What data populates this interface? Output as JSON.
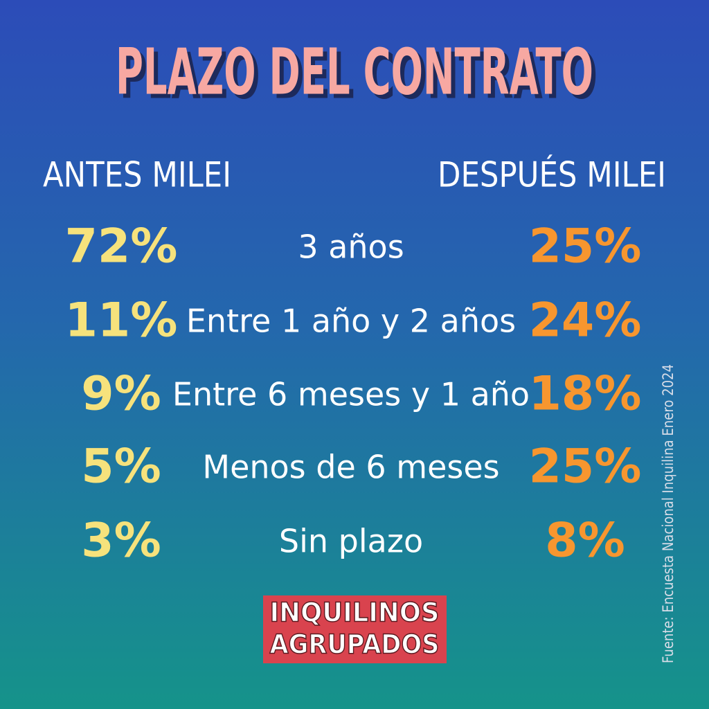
{
  "title": "PLAZO DEL CONTRATO",
  "columns": {
    "before": "ANTES MILEI",
    "after": "DESPUÉS MILEI"
  },
  "rows": [
    {
      "before": "72%",
      "label": "3 años",
      "after": "25%"
    },
    {
      "before": "11%",
      "label": "Entre 1 año y 2 años",
      "after": "24%"
    },
    {
      "before": "9%",
      "label": "Entre 6 meses y 1 año",
      "after": "18%"
    },
    {
      "before": "5%",
      "label": "Menos de 6 meses",
      "after": "25%"
    },
    {
      "before": "3%",
      "label": "Sin plazo",
      "after": "8%"
    }
  ],
  "logo": [
    "INQUILINOS",
    "AGRUPADOS"
  ],
  "source": "Fuente: Encuesta Nacional Inquilina Enero 2024"
}
